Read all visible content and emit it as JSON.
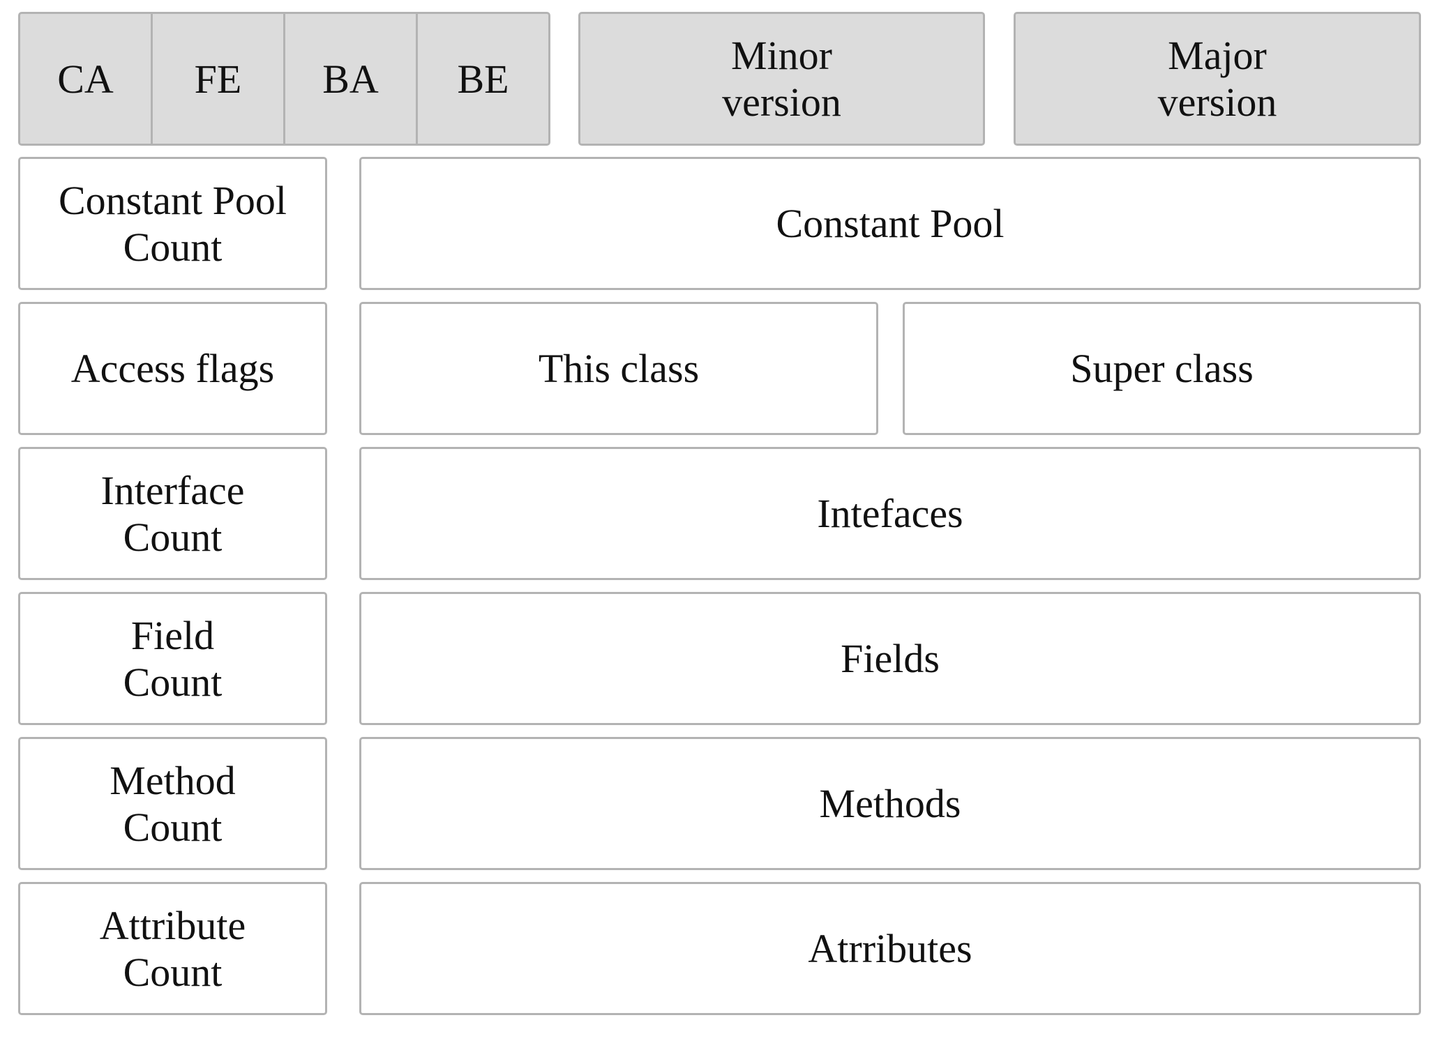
{
  "header": {
    "magic": [
      "CA",
      "FE",
      "BA",
      "BE"
    ],
    "minor_version": "Minor\nversion",
    "major_version": "Major\nversion"
  },
  "rows": [
    {
      "left": "Constant Pool\nCount",
      "right": [
        "Constant Pool"
      ]
    },
    {
      "left": "Access flags",
      "right": [
        "This class",
        "Super class"
      ]
    },
    {
      "left": "Interface\nCount",
      "right": [
        "Intefaces"
      ]
    },
    {
      "left": "Field\nCount",
      "right": [
        "Fields"
      ]
    },
    {
      "left": "Method\nCount",
      "right": [
        "Methods"
      ]
    },
    {
      "left": "Attribute\nCount",
      "right": [
        "Atrributes"
      ]
    }
  ]
}
